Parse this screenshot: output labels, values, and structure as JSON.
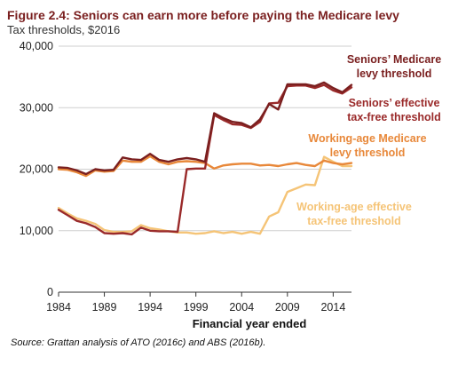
{
  "chart_data": {
    "type": "line",
    "title": "Figure 2.4: Seniors can earn more before paying the Medicare levy",
    "subtitle": "Tax thresholds, $2016",
    "xlabel": "Financial year ended",
    "source": "Source: Grattan analysis of ATO (2016c) and ABS (2016b).",
    "xlim": [
      1984,
      2016
    ],
    "ylim": [
      0,
      40000
    ],
    "x_ticks": [
      1984,
      1989,
      1994,
      1999,
      2004,
      2009,
      2014
    ],
    "y_ticks": [
      0,
      10000,
      20000,
      30000,
      40000
    ],
    "y_tick_labels": [
      "0",
      "10,000",
      "20,000",
      "30,000",
      "40,000"
    ],
    "grid": "horizontal",
    "legend": "inline labels",
    "x": [
      1984,
      1985,
      1986,
      1987,
      1988,
      1989,
      1990,
      1991,
      1992,
      1993,
      1994,
      1995,
      1996,
      1997,
      1998,
      1999,
      2000,
      2001,
      2002,
      2003,
      2004,
      2005,
      2006,
      2007,
      2008,
      2009,
      2010,
      2011,
      2012,
      2013,
      2014,
      2015,
      2016
    ],
    "series": [
      {
        "name": "Seniors’ Medicare levy threshold",
        "label_lines": [
          "Seniors’ Medicare",
          "levy threshold"
        ],
        "color": "#7a1f1f",
        "values": [
          20300,
          20200,
          19800,
          19200,
          20000,
          19800,
          19900,
          21900,
          21600,
          21500,
          22500,
          21500,
          21200,
          21600,
          21800,
          21600,
          21200,
          29100,
          28300,
          27700,
          27500,
          26800,
          28100,
          30600,
          29700,
          33800,
          33800,
          33800,
          33500,
          34100,
          33200,
          32500,
          33700
        ]
      },
      {
        "name": "Seniors’ effective tax-free threshold",
        "label_lines": [
          "Seniors’ effective",
          "tax-free threshold"
        ],
        "color": "#9a2a2a",
        "values": [
          13400,
          12500,
          11600,
          11200,
          10600,
          9600,
          9500,
          9600,
          9400,
          10500,
          10000,
          9900,
          9900,
          9800,
          20000,
          20100,
          20100,
          28800,
          28000,
          27300,
          27200,
          26700,
          27700,
          30700,
          30800,
          33500,
          33600,
          33600,
          33200,
          33700,
          32800,
          32300,
          33300
        ]
      },
      {
        "name": "Working-age Medicare levy threshold",
        "label_lines": [
          "Working-age Medicare",
          "levy threshold"
        ],
        "color": "#e8883a",
        "values": [
          20000,
          19900,
          19500,
          18900,
          19800,
          19600,
          19700,
          21400,
          21200,
          21200,
          22100,
          21200,
          20800,
          21200,
          21300,
          21200,
          21000,
          20100,
          20600,
          20800,
          20900,
          20900,
          20600,
          20700,
          20500,
          20800,
          21000,
          20700,
          20500,
          21400,
          21000,
          20800,
          21000
        ]
      },
      {
        "name": "Working-age effective tax-free threshold",
        "label_lines": [
          "Working-age effective",
          "tax-free threshold"
        ],
        "color": "#f5c477",
        "values": [
          13700,
          12800,
          12000,
          11600,
          11100,
          10100,
          9800,
          9800,
          9900,
          10900,
          10400,
          10200,
          9900,
          9700,
          9700,
          9500,
          9600,
          9900,
          9600,
          9800,
          9500,
          9800,
          9500,
          12300,
          13000,
          16300,
          16900,
          17500,
          17400,
          22000,
          21200,
          20500,
          20500
        ]
      }
    ]
  }
}
